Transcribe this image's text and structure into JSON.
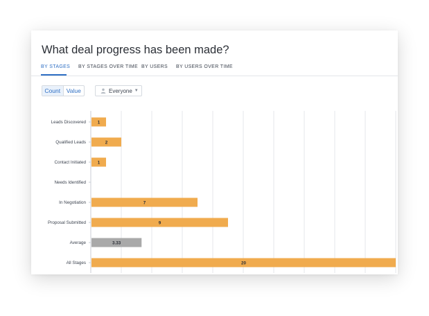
{
  "title": "What deal progress has been made?",
  "tabs": [
    {
      "label": "BY STAGES",
      "active": true
    },
    {
      "label": "BY STAGES OVER TIME",
      "active": false
    },
    {
      "label": "BY USERS",
      "active": false
    },
    {
      "label": "BY USERS OVER TIME",
      "active": false
    }
  ],
  "toggle": {
    "count_label": "Count",
    "value_label": "Value",
    "selected": "Count"
  },
  "user_filter": {
    "value": "Everyone",
    "icon": "user-icon"
  },
  "colors": {
    "accent": "#2e6fc4",
    "bar": "#f0ab4e",
    "average_bar": "#a9a9a9"
  },
  "chart_data": {
    "type": "bar",
    "orientation": "horizontal",
    "categories": [
      "Leads Discovered",
      "Qualified Leads",
      "Contact Initiated",
      "Needs Identified",
      "In Negotiation",
      "Proposal Submitted",
      "Average",
      "All Stages"
    ],
    "values": [
      1,
      2,
      1,
      0,
      7,
      9,
      3.33,
      20
    ],
    "value_labels": [
      "1",
      "2",
      "1",
      "",
      "7",
      "9",
      "3.33",
      "20"
    ],
    "xlim": [
      0,
      20
    ],
    "grid": true
  }
}
